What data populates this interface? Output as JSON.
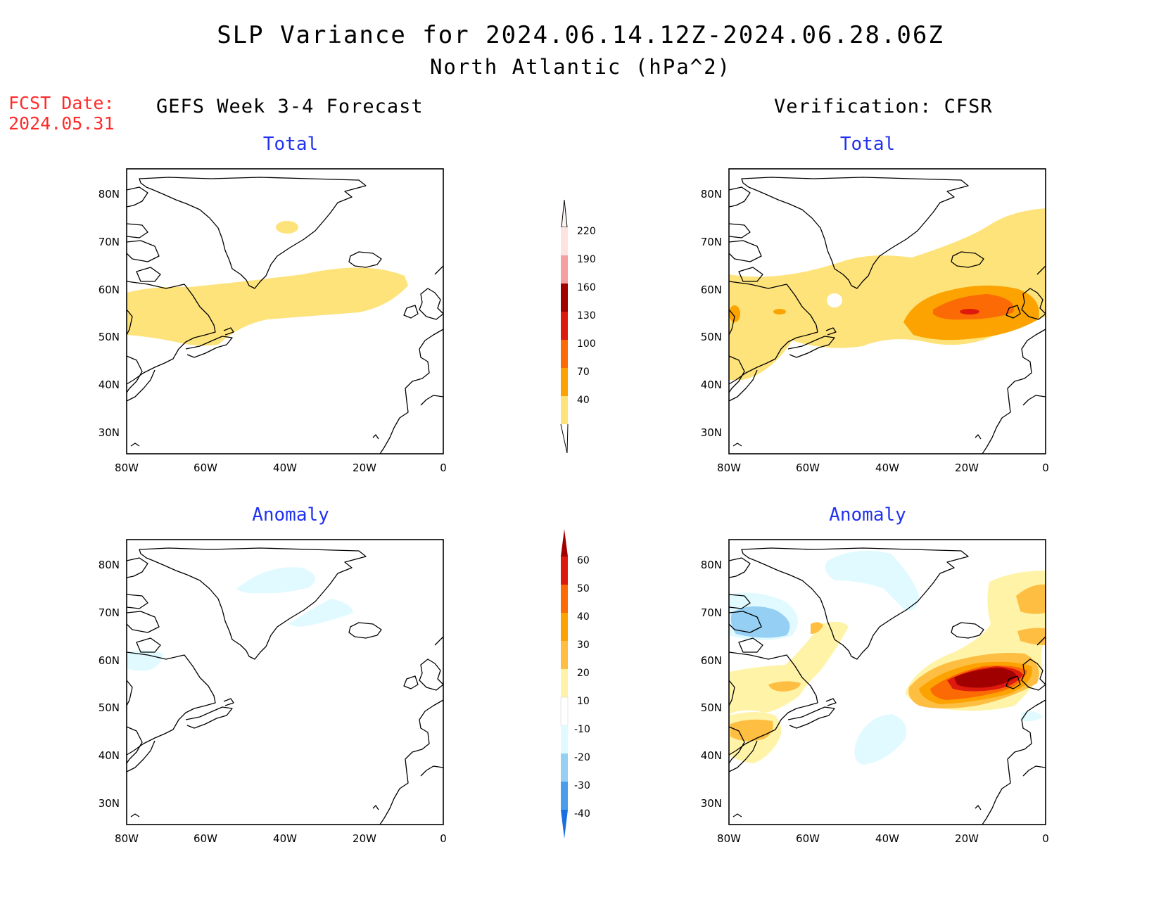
{
  "title": {
    "line1": "SLP Variance for 2024.06.14.12Z-2024.06.28.06Z",
    "line2": "North Atlantic (hPa^2)"
  },
  "fcst_date": {
    "label": "FCST Date:",
    "value": "2024.05.31"
  },
  "columns": {
    "left": "GEFS Week 3-4 Forecast",
    "right": "Verification: CFSR"
  },
  "panel_titles": {
    "total": "Total",
    "anomaly": "Anomaly"
  },
  "map": {
    "lat_labels": [
      "80N",
      "70N",
      "60N",
      "50N",
      "40N",
      "30N"
    ],
    "lon_labels": [
      "80W",
      "60W",
      "40W",
      "20W",
      "0"
    ],
    "lat_range": [
      25,
      85
    ],
    "lon_range": [
      -80,
      0
    ]
  },
  "colorbars": {
    "total": {
      "labels": [
        "220",
        "190",
        "160",
        "130",
        "100",
        "70",
        "40"
      ],
      "colors": [
        "#fde4e0",
        "#f4a0a0",
        "#a00000",
        "#de1a0e",
        "#fb6a05",
        "#fca302",
        "#fde37a"
      ]
    },
    "anomaly": {
      "labels": [
        "60",
        "50",
        "40",
        "30",
        "20",
        "10",
        "-10",
        "-20",
        "-30",
        "-40"
      ],
      "colors": [
        "#a00000",
        "#de1a0e",
        "#fb6a05",
        "#fca302",
        "#fdbe42",
        "#fff3a8",
        "#ffffff",
        "#e0faff",
        "#95cff4",
        "#4a9ded",
        "#1a6fe0"
      ]
    }
  },
  "colors": {
    "land_outline": "#000000",
    "sub_title": "#2233ee",
    "fcst_date": "#ff2a2a"
  }
}
